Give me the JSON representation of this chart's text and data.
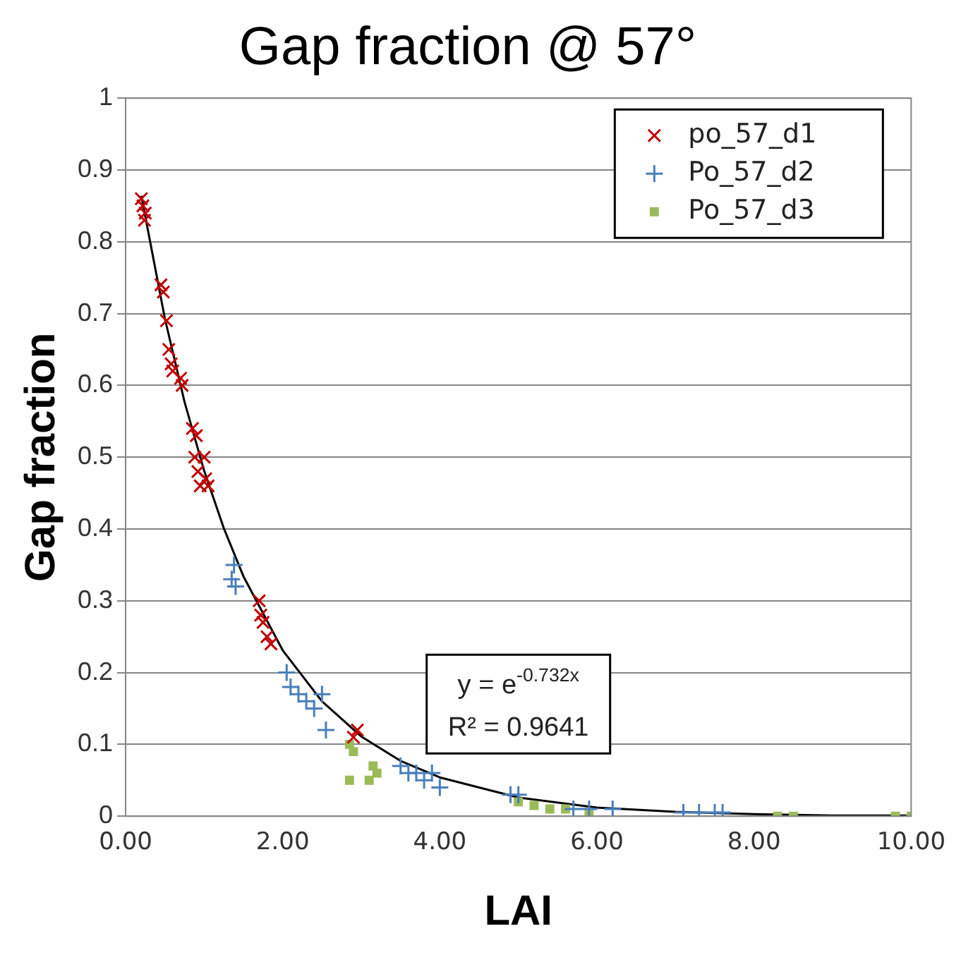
{
  "chart_data": {
    "type": "scatter",
    "title": "Gap fraction @ 57°",
    "xlabel": "LAI",
    "ylabel": "Gap fraction",
    "xlim": [
      0,
      10
    ],
    "xticks": [
      {
        "value": 0,
        "label": "0.00"
      },
      {
        "value": 2,
        "label": "2.00"
      },
      {
        "value": 4,
        "label": "4.00"
      },
      {
        "value": 6,
        "label": "6.00"
      },
      {
        "value": 8,
        "label": "8.00"
      },
      {
        "value": 10,
        "label": "10.00"
      }
    ],
    "ylim": [
      0,
      1
    ],
    "yticks": [
      0,
      0.1,
      0.2,
      0.3,
      0.4,
      0.5,
      0.6,
      0.7,
      0.8,
      0.9,
      1
    ],
    "grid": "y",
    "legend": "top right",
    "annotations": [
      "y = e$^{-0.732x}$",
      "R² = 0.9641"
    ],
    "series": [
      {
        "name": "po_57_d1",
        "color": "#c00000",
        "marker": "x",
        "x": [
          0.2,
          0.22,
          0.24,
          0.25,
          0.45,
          0.48,
          0.52,
          0.55,
          0.58,
          0.6,
          0.7,
          0.72,
          0.85,
          0.9,
          0.88,
          0.92,
          0.95,
          1.0,
          1.02,
          1.05,
          1.7,
          1.72,
          1.75,
          1.8,
          1.85,
          2.95,
          2.9
        ],
        "values": [
          0.86,
          0.85,
          0.83,
          0.84,
          0.74,
          0.73,
          0.69,
          0.65,
          0.63,
          0.62,
          0.61,
          0.6,
          0.54,
          0.53,
          0.5,
          0.48,
          0.46,
          0.5,
          0.47,
          0.46,
          0.3,
          0.28,
          0.27,
          0.25,
          0.24,
          0.12,
          0.11
        ]
      },
      {
        "name": "Po_57_d2",
        "color": "#4a7ebb",
        "marker": "cross",
        "x": [
          1.35,
          1.4,
          1.38,
          2.05,
          2.1,
          2.2,
          2.3,
          2.4,
          2.5,
          2.55,
          3.5,
          3.6,
          3.7,
          3.8,
          3.9,
          4.0,
          4.9,
          5.0,
          5.7,
          5.9,
          6.2,
          7.1,
          7.3,
          7.5,
          7.6
        ],
        "values": [
          0.33,
          0.32,
          0.35,
          0.2,
          0.18,
          0.17,
          0.16,
          0.15,
          0.17,
          0.12,
          0.07,
          0.06,
          0.06,
          0.05,
          0.06,
          0.04,
          0.03,
          0.03,
          0.01,
          0.01,
          0.01,
          0.005,
          0.005,
          0.005,
          0.005
        ]
      },
      {
        "name": "Po_57_d3",
        "color": "#9bbb59",
        "marker": "square",
        "x": [
          2.85,
          2.9,
          2.85,
          3.15,
          3.2,
          3.1,
          5.0,
          5.2,
          5.4,
          5.6,
          5.9,
          8.3,
          8.5,
          9.8,
          10
        ],
        "values": [
          0.1,
          0.09,
          0.05,
          0.07,
          0.06,
          0.05,
          0.02,
          0.015,
          0.01,
          0.01,
          0.005,
          0,
          0,
          0,
          0
        ]
      },
      {
        "type": "line",
        "color": "#000000",
        "marker": "none",
        "x": [
          0.2,
          0.5,
          0.75,
          1,
          1.25,
          1.5,
          2,
          2.5,
          3,
          3.5,
          4,
          5,
          6,
          7,
          8,
          9,
          10
        ],
        "values": [
          0.864,
          0.693,
          0.577,
          0.481,
          0.401,
          0.334,
          0.231,
          0.16,
          0.111,
          0.077,
          0.054,
          0.026,
          0.012,
          0.006,
          0.003,
          0.001,
          0.001
        ]
      }
    ]
  }
}
